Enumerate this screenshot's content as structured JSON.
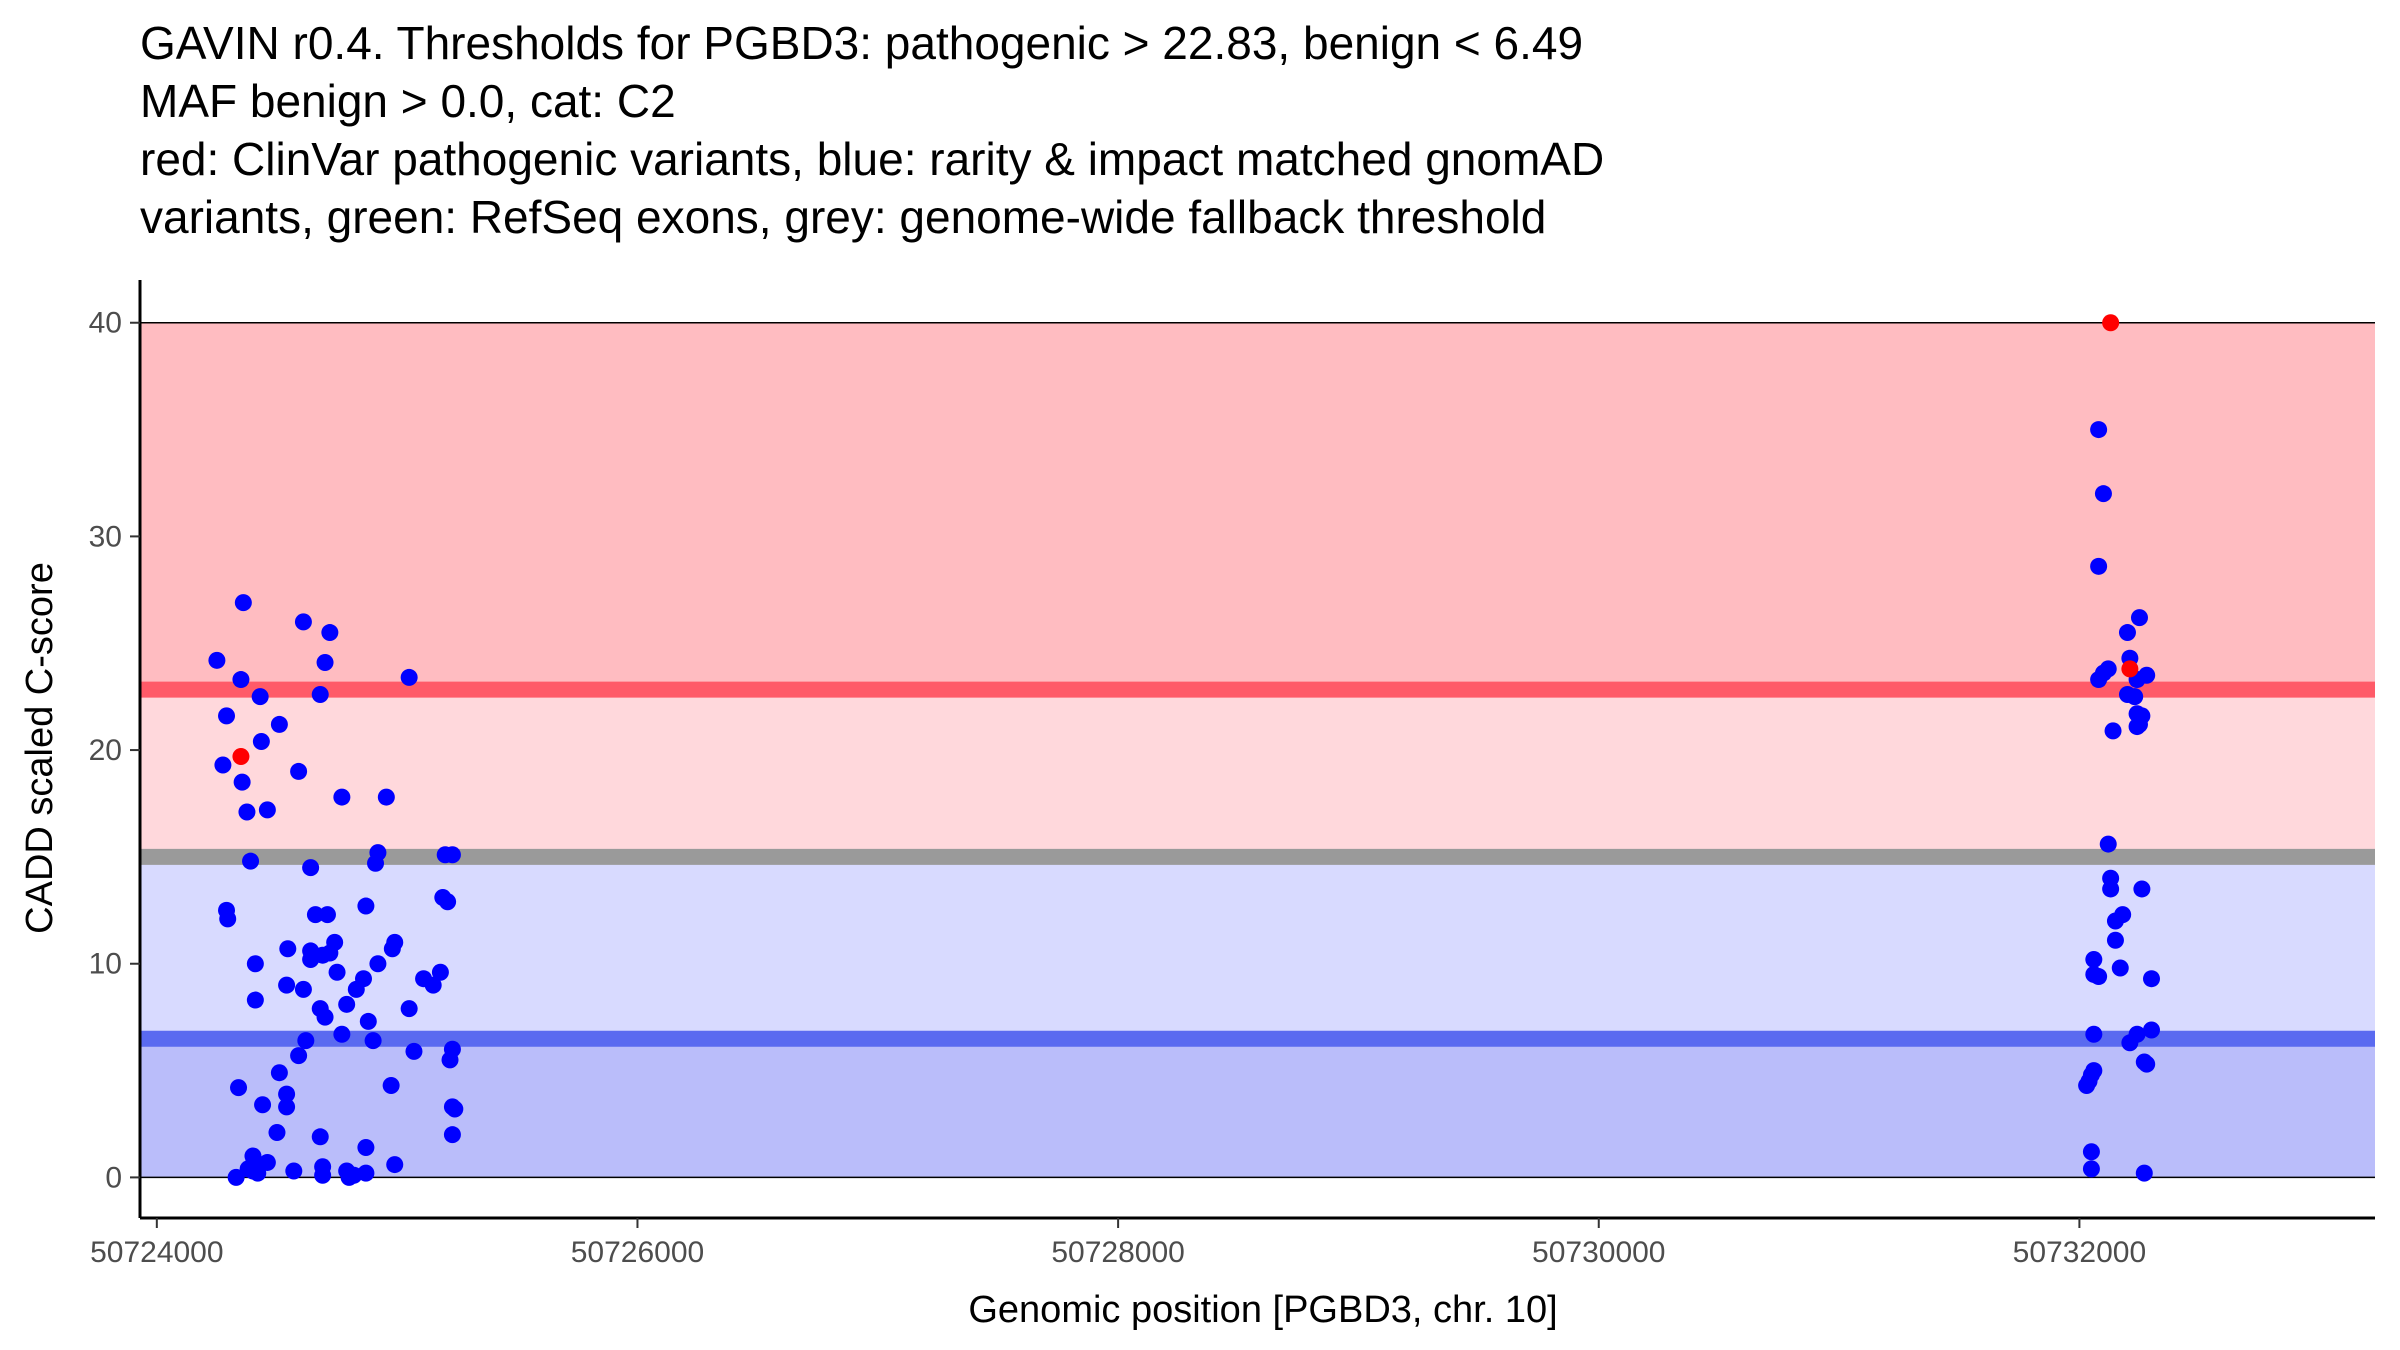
{
  "title_lines": [
    "GAVIN r0.4. Thresholds for PGBD3: pathogenic > 22.83, benign < 6.49",
    "MAF benign > 0.0, cat: C2",
    "red: ClinVar pathogenic variants, blue: rarity & impact matched gnomAD",
    "variants, green: RefSeq exons, grey: genome-wide fallback threshold"
  ],
  "chart_data": {
    "type": "scatter",
    "title": "GAVIN r0.4. Thresholds for PGBD3: pathogenic > 22.83, benign < 6.49 MAF benign > 0.0, cat: C2 red: ClinVar pathogenic variants, blue: rarity & impact matched gnomAD variants, green: RefSeq exons, grey: genome-wide fallback threshold",
    "xlabel": "Genomic position [PGBD3, chr. 10]",
    "ylabel": "CADD scaled C-score",
    "xlim": [
      50723930,
      50733230
    ],
    "ylim": [
      -1.9,
      42.0
    ],
    "x_ticks": [
      50724000,
      50726000,
      50728000,
      50730000,
      50732000
    ],
    "x_tick_labels": [
      "50724000",
      "50726000",
      "50728000",
      "50730000",
      "50732000"
    ],
    "y_ticks": [
      0,
      10,
      20,
      30,
      40
    ],
    "y_tick_labels": [
      "0",
      "10",
      "20",
      "30",
      "40"
    ],
    "grid": false,
    "bands": [
      {
        "name": "pathogenic-zone",
        "y": [
          22.83,
          40
        ],
        "color": "#ffbcc1"
      },
      {
        "name": "intermediate-zone",
        "y": [
          15,
          22.83
        ],
        "color": "#ffd8dc"
      },
      {
        "name": "benign-upper-zone",
        "y": [
          6.49,
          15
        ],
        "color": "#d8daff"
      },
      {
        "name": "benign-zone",
        "y": [
          0,
          6.49
        ],
        "color": "#babdfa"
      }
    ],
    "threshold_lines": [
      {
        "name": "pathogenic-threshold",
        "y": 22.83,
        "color": "#ff5a68"
      },
      {
        "name": "fallback-threshold",
        "y": 15.0,
        "color": "#9a9a9a"
      },
      {
        "name": "benign-threshold",
        "y": 6.49,
        "color": "#5a6af0"
      }
    ],
    "series": [
      {
        "color": "#0000ff",
        "points": [
          [
            50724250,
            24.2
          ],
          [
            50724290,
            21.6
          ],
          [
            50724275,
            19.3
          ],
          [
            50724360,
            26.9
          ],
          [
            50724350,
            23.3
          ],
          [
            50724355,
            18.5
          ],
          [
            50724375,
            17.1
          ],
          [
            50724430,
            22.5
          ],
          [
            50724435,
            20.4
          ],
          [
            50724460,
            17.2
          ],
          [
            50724510,
            21.2
          ],
          [
            50724590,
            19.0
          ],
          [
            50724610,
            26.0
          ],
          [
            50724680,
            22.6
          ],
          [
            50724700,
            24.1
          ],
          [
            50724720,
            25.5
          ],
          [
            50724770,
            17.8
          ],
          [
            50724955,
            17.8
          ],
          [
            50725050,
            23.4
          ],
          [
            50724390,
            14.8
          ],
          [
            50724290,
            12.5
          ],
          [
            50724295,
            12.1
          ],
          [
            50724410,
            10.0
          ],
          [
            50724410,
            8.3
          ],
          [
            50724640,
            14.5
          ],
          [
            50724660,
            12.3
          ],
          [
            50724710,
            12.3
          ],
          [
            50724545,
            10.7
          ],
          [
            50724640,
            10.6
          ],
          [
            50724640,
            10.2
          ],
          [
            50724690,
            10.4
          ],
          [
            50724720,
            10.5
          ],
          [
            50724740,
            11.0
          ],
          [
            50724540,
            9.0
          ],
          [
            50724610,
            8.8
          ],
          [
            50724750,
            9.6
          ],
          [
            50724790,
            8.1
          ],
          [
            50724830,
            8.8
          ],
          [
            50724860,
            9.3
          ],
          [
            50724680,
            7.9
          ],
          [
            50724700,
            7.5
          ],
          [
            50724770,
            6.7
          ],
          [
            50724870,
            12.7
          ],
          [
            50724920,
            15.2
          ],
          [
            50724910,
            14.7
          ],
          [
            50724990,
            11.0
          ],
          [
            50724980,
            10.7
          ],
          [
            50724920,
            10.0
          ],
          [
            50725050,
            7.9
          ],
          [
            50725070,
            5.9
          ],
          [
            50724880,
            7.3
          ],
          [
            50724900,
            6.4
          ],
          [
            50725110,
            9.3
          ],
          [
            50725150,
            9.0
          ],
          [
            50725180,
            9.6
          ],
          [
            50725190,
            13.1
          ],
          [
            50725200,
            15.1
          ],
          [
            50725230,
            15.1
          ],
          [
            50725210,
            12.9
          ],
          [
            50725230,
            6.0
          ],
          [
            50725220,
            5.5
          ],
          [
            50725230,
            3.3
          ],
          [
            50725230,
            2.0
          ],
          [
            50725240,
            3.2
          ],
          [
            50724975,
            4.3
          ],
          [
            50724990,
            0.6
          ],
          [
            50724870,
            1.4
          ],
          [
            50724870,
            0.2
          ],
          [
            50724820,
            0.1
          ],
          [
            50724790,
            0.3
          ],
          [
            50724800,
            0.0
          ],
          [
            50724680,
            1.9
          ],
          [
            50724690,
            0.5
          ],
          [
            50724690,
            0.1
          ],
          [
            50724570,
            0.3
          ],
          [
            50724620,
            6.4
          ],
          [
            50724590,
            5.7
          ],
          [
            50724510,
            4.9
          ],
          [
            50724540,
            3.9
          ],
          [
            50724540,
            3.3
          ],
          [
            50724440,
            3.4
          ],
          [
            50724500,
            2.1
          ],
          [
            50724340,
            4.2
          ],
          [
            50724400,
            1.0
          ],
          [
            50724400,
            0.6
          ],
          [
            50724400,
            0.3
          ],
          [
            50724420,
            0.2
          ],
          [
            50724460,
            0.7
          ],
          [
            50724380,
            0.4
          ],
          [
            50724330,
            0.0
          ],
          [
            50732080,
            35.0
          ],
          [
            50732100,
            32.0
          ],
          [
            50732080,
            28.6
          ],
          [
            50732250,
            26.2
          ],
          [
            50732200,
            25.5
          ],
          [
            50732210,
            24.3
          ],
          [
            50732120,
            23.8
          ],
          [
            50732240,
            23.3
          ],
          [
            50732280,
            23.5
          ],
          [
            50732080,
            23.3
          ],
          [
            50732100,
            23.6
          ],
          [
            50732200,
            22.6
          ],
          [
            50732230,
            22.5
          ],
          [
            50732240,
            21.7
          ],
          [
            50732260,
            21.6
          ],
          [
            50732250,
            21.2
          ],
          [
            50732140,
            20.9
          ],
          [
            50732240,
            21.1
          ],
          [
            50732120,
            15.6
          ],
          [
            50732130,
            14.0
          ],
          [
            50732130,
            13.5
          ],
          [
            50732260,
            13.5
          ],
          [
            50732180,
            12.3
          ],
          [
            50732150,
            12.0
          ],
          [
            50732150,
            11.1
          ],
          [
            50732060,
            10.2
          ],
          [
            50732170,
            9.8
          ],
          [
            50732060,
            9.5
          ],
          [
            50732080,
            9.4
          ],
          [
            50732300,
            9.3
          ],
          [
            50732060,
            6.7
          ],
          [
            50732240,
            6.7
          ],
          [
            50732300,
            6.9
          ],
          [
            50732210,
            6.3
          ],
          [
            50732270,
            5.4
          ],
          [
            50732280,
            5.3
          ],
          [
            50732060,
            5.0
          ],
          [
            50732050,
            4.8
          ],
          [
            50732040,
            4.5
          ],
          [
            50732030,
            4.3
          ],
          [
            50732050,
            1.2
          ],
          [
            50732050,
            0.4
          ],
          [
            50732270,
            0.2
          ]
        ]
      },
      {
        "color": "#ff0000",
        "points": [
          [
            50724350,
            19.7
          ],
          [
            50732130,
            40.0
          ],
          [
            50732210,
            23.8
          ]
        ]
      }
    ]
  }
}
